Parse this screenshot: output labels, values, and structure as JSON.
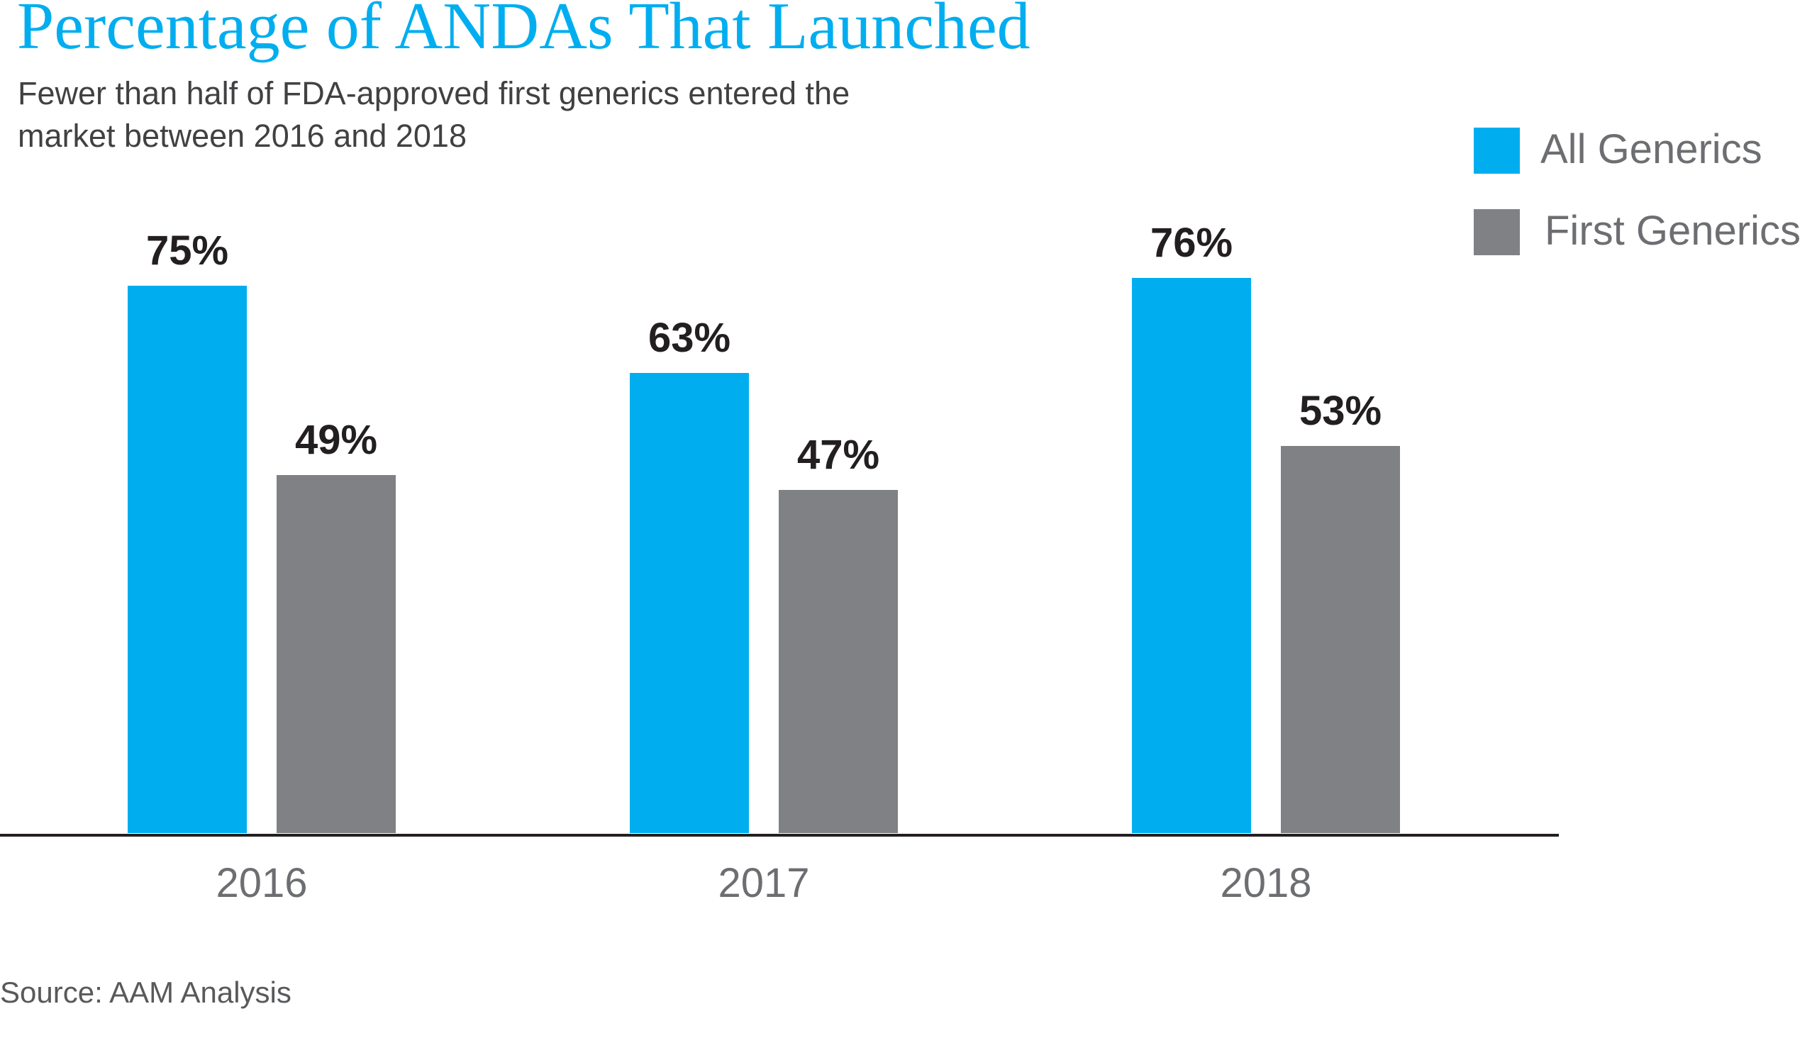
{
  "colors": {
    "title": "#00aeef",
    "all_generics": "#00aeef",
    "first_generics": "#808184",
    "labels": "#231f20"
  },
  "chart_data": {
    "type": "bar",
    "title": "Percentage of ANDAs That Launched",
    "subtitle_lines": [
      "Fewer than half of FDA-approved first generics entered the",
      "market between 2016 and 2018"
    ],
    "categories": [
      "2016",
      "2017",
      "2018"
    ],
    "series": [
      {
        "name": "All Generics",
        "values": [
          75,
          63,
          76
        ],
        "labels": [
          "75%",
          "63%",
          "76%"
        ],
        "color": "#00aeef"
      },
      {
        "name": "First Generics",
        "values": [
          49,
          47,
          53
        ],
        "labels": [
          "49%",
          "47%",
          "53%"
        ],
        "color": "#808184"
      }
    ],
    "xlabel": "",
    "ylabel": "",
    "ylim": [
      0,
      100
    ],
    "grid": false,
    "legend_position": "top-right",
    "source": "Source: AAM Analysis"
  }
}
